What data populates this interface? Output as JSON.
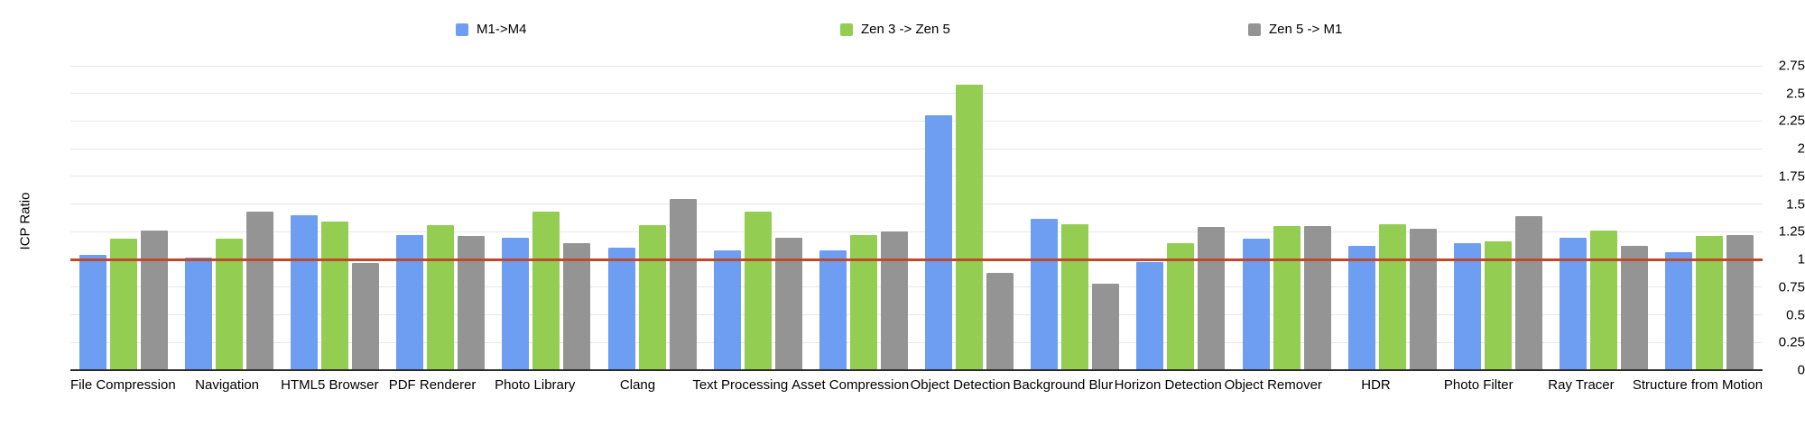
{
  "chart_data": {
    "type": "bar",
    "title": "",
    "xlabel": "",
    "ylabel": "ICP Ratio",
    "ylim": [
      0,
      2.75
    ],
    "grid": true,
    "legend_position": "top",
    "ytick_labels": [
      "0",
      "0.25",
      "0.5",
      "0.75",
      "1",
      "1.25",
      "1.5",
      "1.75",
      "2",
      "2.25",
      "2.5",
      "2.75"
    ],
    "reference_line": {
      "value": 1,
      "color": "#bf4a2b"
    },
    "categories": [
      "File Compression",
      "Navigation",
      "HTML5 Browser",
      "PDF Renderer",
      "Photo Library",
      "Clang",
      "Text Processing",
      "Asset Compression",
      "Object Detection",
      "Background Blur",
      "Horizon Detection",
      "Object Remover",
      "HDR",
      "Photo Filter",
      "Ray Tracer",
      "Structure from Motion"
    ],
    "series": [
      {
        "name": "M1->M4",
        "color": "#6d9ef1",
        "values": [
          1.04,
          1.02,
          1.4,
          1.22,
          1.2,
          1.11,
          1.08,
          1.08,
          2.3,
          1.37,
          0.98,
          1.19,
          1.12,
          1.15,
          1.2,
          1.07
        ]
      },
      {
        "name": "Zen 3 -> Zen 5",
        "color": "#93ce52",
        "values": [
          1.19,
          1.19,
          1.34,
          1.31,
          1.43,
          1.31,
          1.43,
          1.22,
          2.58,
          1.32,
          1.15,
          1.3,
          1.32,
          1.16,
          1.26,
          1.21
        ]
      },
      {
        "name": "Zen 5 -> M1",
        "color": "#949494",
        "values": [
          1.26,
          1.43,
          0.97,
          1.21,
          1.15,
          1.55,
          1.2,
          1.25,
          0.88,
          0.78,
          1.29,
          1.3,
          1.28,
          1.39,
          1.12,
          1.22
        ]
      }
    ]
  }
}
